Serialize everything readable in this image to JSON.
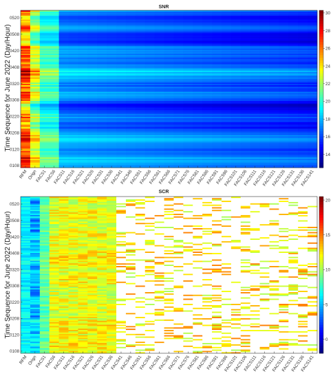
{
  "chart_data": [
    {
      "type": "heatmap",
      "title": "SNR",
      "ylabel": "Time Sequence for June 2022 (Day/Hour)",
      "xlabel": "",
      "x_categories": [
        "RFM",
        "Orign",
        "FACS1",
        "FACS6",
        "FACS11",
        "FACS16",
        "FACS21",
        "FACS26",
        "FACS31",
        "FACS36",
        "FACS41",
        "FACS46",
        "FACS51",
        "FACS56",
        "FACS61",
        "FACS66",
        "FACS71",
        "FACS76",
        "FACS81",
        "FACS86",
        "FACS91",
        "FACS96",
        "FACS101",
        "FACS106",
        "FACS111",
        "FACS116",
        "FACS121",
        "FACS126",
        "FACS131",
        "FACS136",
        "FACS141"
      ],
      "y_ticks": [
        "0108",
        "0120",
        "0208",
        "0220",
        "0308",
        "0320",
        "0408",
        "0420",
        "0508",
        "0520"
      ],
      "colorbar": {
        "min": 12.5,
        "max": 30.3,
        "ticks": [
          14,
          16,
          18,
          20,
          22,
          24,
          26,
          28,
          30
        ],
        "colormap": "jet"
      },
      "grid": false
    },
    {
      "type": "heatmap",
      "title": "SCR",
      "ylabel": "Time Sequence for June 2022 (Day/Hour)",
      "xlabel": "",
      "x_categories": [
        "RFM",
        "Orign",
        "FACS1",
        "FACS6",
        "FACS11",
        "FACS16",
        "FACS21",
        "FACS26",
        "FACS31",
        "FACS36",
        "FACS41",
        "FACS46",
        "FACS51",
        "FACS56",
        "FACS61",
        "FACS66",
        "FACS71",
        "FACS76",
        "FACS81",
        "FACS86",
        "FACS91",
        "FACS96",
        "FACS101",
        "FACS106",
        "FACS111",
        "FACS116",
        "FACS121",
        "FACS126",
        "FACS131",
        "FACS136",
        "FACS141"
      ],
      "y_ticks": [
        "0108",
        "0120",
        "0208",
        "0220",
        "0308",
        "0320",
        "0408",
        "0420",
        "0508",
        "0520"
      ],
      "colorbar": {
        "min": -2,
        "max": 20.5,
        "ticks": [
          0,
          5,
          10,
          15,
          20
        ],
        "colormap": "jet",
        "zero_color": "#ffffff"
      },
      "grid": false
    }
  ]
}
